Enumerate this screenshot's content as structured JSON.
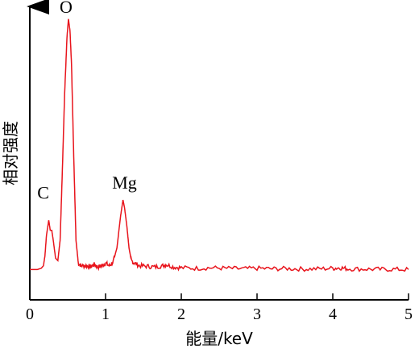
{
  "chart_data": {
    "type": "line",
    "xlabel": "能量/keV",
    "ylabel": "相对强度",
    "xlim": [
      0,
      5
    ],
    "ylim": [
      0,
      1.05
    ],
    "x_ticks": [
      "0",
      "1",
      "2",
      "3",
      "4",
      "5"
    ],
    "grid": false,
    "line_color": "#e8141c",
    "axis_color": "#000000",
    "annotations": [
      {
        "text": "O",
        "x": 0.5,
        "y": 1.0
      },
      {
        "text": "C",
        "x": 0.24,
        "y": 0.24
      },
      {
        "text": "Mg",
        "x": 1.25,
        "y": 0.28
      }
    ],
    "series": [
      {
        "values": [
          [
            0.0,
            0.005
          ],
          [
            0.1,
            0.005
          ],
          [
            0.15,
            0.01
          ],
          [
            0.18,
            0.02
          ],
          [
            0.2,
            0.06
          ],
          [
            0.22,
            0.14
          ],
          [
            0.25,
            0.2
          ],
          [
            0.27,
            0.16
          ],
          [
            0.29,
            0.16
          ],
          [
            0.31,
            0.12
          ],
          [
            0.34,
            0.05
          ],
          [
            0.37,
            0.04
          ],
          [
            0.4,
            0.12
          ],
          [
            0.43,
            0.4
          ],
          [
            0.46,
            0.7
          ],
          [
            0.49,
            0.92
          ],
          [
            0.51,
            0.995
          ],
          [
            0.53,
            0.95
          ],
          [
            0.55,
            0.82
          ],
          [
            0.58,
            0.45
          ],
          [
            0.61,
            0.12
          ],
          [
            0.64,
            0.03
          ],
          [
            0.68,
            0.02
          ],
          [
            0.75,
            0.02
          ],
          [
            0.8,
            0.015
          ],
          [
            0.85,
            0.025
          ],
          [
            0.9,
            0.015
          ],
          [
            0.95,
            0.02
          ],
          [
            1.0,
            0.03
          ],
          [
            1.05,
            0.02
          ],
          [
            1.1,
            0.035
          ],
          [
            1.15,
            0.09
          ],
          [
            1.2,
            0.22
          ],
          [
            1.23,
            0.28
          ],
          [
            1.25,
            0.25
          ],
          [
            1.28,
            0.18
          ],
          [
            1.31,
            0.09
          ],
          [
            1.34,
            0.04
          ],
          [
            1.38,
            0.03
          ],
          [
            1.45,
            0.02
          ],
          [
            1.55,
            0.018
          ],
          [
            1.65,
            0.015
          ],
          [
            1.75,
            0.02
          ],
          [
            1.8,
            0.025
          ],
          [
            1.9,
            0.015
          ],
          [
            2.0,
            0.012
          ],
          [
            2.2,
            0.01
          ],
          [
            2.4,
            0.012
          ],
          [
            2.6,
            0.01
          ],
          [
            2.8,
            0.008
          ],
          [
            3.0,
            0.01
          ],
          [
            3.2,
            0.008
          ],
          [
            3.4,
            0.009
          ],
          [
            3.6,
            0.007
          ],
          [
            3.8,
            0.008
          ],
          [
            4.0,
            0.01
          ],
          [
            4.1,
            0.012
          ],
          [
            4.2,
            0.008
          ],
          [
            4.4,
            0.007
          ],
          [
            4.6,
            0.006
          ],
          [
            4.8,
            0.006
          ],
          [
            5.0,
            0.005
          ]
        ]
      }
    ]
  }
}
